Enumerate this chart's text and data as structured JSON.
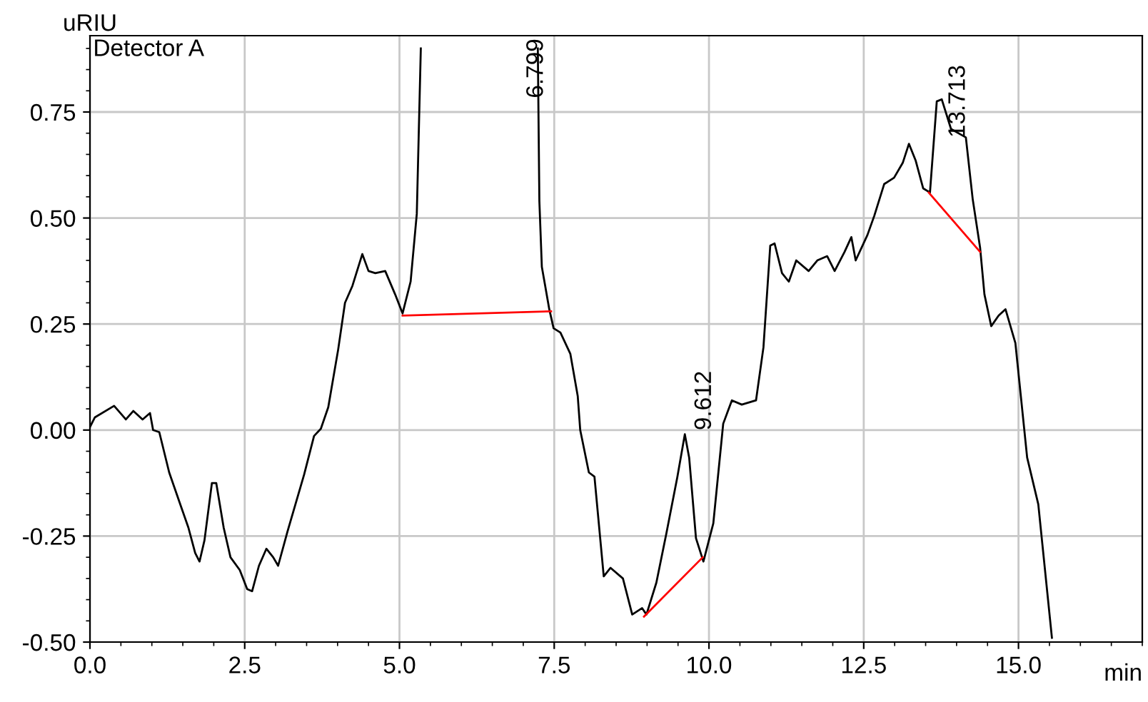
{
  "chart_data": {
    "type": "line",
    "xlabel": "min",
    "ylabel": "uRIU",
    "xlim": [
      0,
      17
    ],
    "ylim": [
      -0.5,
      0.93
    ],
    "xticks": [
      {
        "value": 0,
        "label": "0.0"
      },
      {
        "value": 2.5,
        "label": "2.5"
      },
      {
        "value": 5,
        "label": "5.0"
      },
      {
        "value": 7.5,
        "label": "7.5"
      },
      {
        "value": 10,
        "label": "10.0"
      },
      {
        "value": 12.5,
        "label": "12.5"
      },
      {
        "value": 15,
        "label": "15.0"
      }
    ],
    "yticks": [
      {
        "value": -0.5,
        "label": "-0.50"
      },
      {
        "value": -0.25,
        "label": "-0.25"
      },
      {
        "value": 0,
        "label": "0.00"
      },
      {
        "value": 0.25,
        "label": "0.25"
      },
      {
        "value": 0.5,
        "label": "0.50"
      },
      {
        "value": 0.75,
        "label": "0.75"
      }
    ],
    "grid": true,
    "series": [
      {
        "color": "#000000",
        "x": [
          0,
          0.08,
          0.39,
          0.58,
          0.7,
          0.85,
          0.97,
          1.02,
          1.12,
          1.28,
          1.47,
          1.59,
          1.7,
          1.77,
          1.85,
          1.97,
          2.04,
          2.16,
          2.27,
          2.42,
          2.54,
          2.62,
          2.73,
          2.85,
          2.96,
          3.04,
          3.19,
          3.46,
          3.62,
          3.73,
          3.85,
          4.01,
          4.12,
          4.24,
          4.4,
          4.5,
          4.61,
          4.77,
          4.93,
          5.05,
          5.18,
          5.28,
          5.345,
          6.3,
          7.235,
          7.26,
          7.3,
          7.42,
          7.49,
          7.6,
          7.76,
          7.88,
          7.92,
          8.06,
          8.15,
          8.3,
          8.41,
          8.61,
          8.76,
          8.92,
          8.99,
          9.15,
          9.31,
          9.49,
          9.61,
          9.68,
          9.79,
          9.91,
          10.07,
          10.23,
          10.37,
          10.53,
          10.76,
          10.88,
          10.99,
          11.06,
          11.18,
          11.29,
          11.41,
          11.61,
          11.75,
          11.91,
          12.03,
          12.19,
          12.3,
          12.37,
          12.56,
          12.67,
          12.83,
          12.99,
          13.13,
          13.23,
          13.34,
          13.46,
          13.57,
          13.68,
          13.76,
          13.91,
          14.15,
          14.26,
          14.38,
          14.45,
          14.56,
          14.68,
          14.79,
          14.95,
          15.14,
          15.32,
          15.54
        ],
        "values": [
          0.007,
          0.03,
          0.057,
          0.025,
          0.045,
          0.025,
          0.04,
          0.0,
          -0.005,
          -0.1,
          -0.18,
          -0.23,
          -0.29,
          -0.31,
          -0.26,
          -0.125,
          -0.125,
          -0.23,
          -0.3,
          -0.33,
          -0.375,
          -0.38,
          -0.32,
          -0.28,
          -0.3,
          -0.32,
          -0.24,
          -0.105,
          -0.014,
          0.003,
          0.054,
          0.19,
          0.3,
          0.34,
          0.415,
          0.375,
          0.37,
          0.375,
          0.32,
          0.275,
          0.35,
          0.51,
          0.9,
          null,
          0.9,
          0.54,
          0.385,
          0.285,
          0.24,
          0.23,
          0.18,
          0.08,
          0.0,
          -0.1,
          -0.11,
          -0.345,
          -0.325,
          -0.35,
          -0.435,
          -0.42,
          -0.435,
          -0.36,
          -0.245,
          -0.11,
          -0.01,
          -0.065,
          -0.255,
          -0.31,
          -0.22,
          0.015,
          0.07,
          0.06,
          0.07,
          0.195,
          0.435,
          0.44,
          0.37,
          0.35,
          0.4,
          0.375,
          0.4,
          0.41,
          0.375,
          0.42,
          0.455,
          0.4,
          0.46,
          0.505,
          0.58,
          0.595,
          0.63,
          0.675,
          0.635,
          0.57,
          0.56,
          0.775,
          0.78,
          0.71,
          0.69,
          0.545,
          0.43,
          0.32,
          0.245,
          0.27,
          0.285,
          0.205,
          -0.065,
          -0.175,
          -0.49
        ]
      },
      {
        "color": "#ff0000",
        "x": [
          5.05,
          7.45
        ],
        "values": [
          0.27,
          0.28
        ]
      },
      {
        "color": "#ff0000",
        "x": [
          8.95,
          9.9
        ],
        "values": [
          -0.44,
          -0.3
        ]
      },
      {
        "color": "#ff0000",
        "x": [
          13.55,
          14.38
        ],
        "values": [
          0.56,
          0.42
        ]
      }
    ],
    "annotations": [
      "Detector A",
      "6.799",
      {
        "text": "9.612",
        "x": 9.612,
        "y": -0.01
      },
      {
        "text": "13.713",
        "x": 13.713,
        "y": 0.68
      }
    ]
  }
}
